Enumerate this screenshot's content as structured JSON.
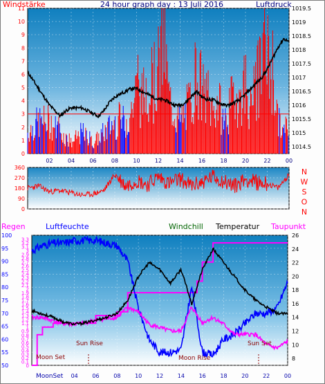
{
  "header": {
    "left_title": "Windstärke",
    "center_title": "24 hour graph day : 13 Juli 2016",
    "right_title": "Luftdruck"
  },
  "colors": {
    "wind": "#ff0000",
    "wind_low": "#0000ff",
    "pressure": "#000000",
    "direction": "#ff0000",
    "rain": "#ff00ff",
    "humidity": "#0000ff",
    "windchill": "#006400",
    "temperature": "#000000",
    "dewpoint": "#ff00ff",
    "sun_marker": "#8b0000"
  },
  "chart_data": [
    {
      "type": "line",
      "name": "wind-pressure",
      "left_axis_ticks": [
        "0",
        "1",
        "2",
        "3",
        "4",
        "5",
        "6",
        "7",
        "8",
        "9",
        "10",
        "11"
      ],
      "right_axis_ticks": [
        "1014.5",
        "1015",
        "1015.5",
        "1016",
        "1016.5",
        "1017",
        "1017.5",
        "1018",
        "1018.5",
        "1019",
        "1019.5"
      ],
      "x_ticks": [
        "02",
        "04",
        "06",
        "08",
        "10",
        "12",
        "14",
        "16",
        "18",
        "20",
        "22",
        "00"
      ],
      "wind_ylim": [
        0,
        11
      ],
      "pressure_ylim": [
        1014.25,
        1019.5
      ],
      "pressure_series": {
        "x": [
          0,
          0.5,
          1,
          1.5,
          2,
          2.5,
          3,
          3.5,
          4,
          4.5,
          5,
          5.5,
          6,
          6.5,
          7,
          7.5,
          8,
          8.5,
          9,
          9.5,
          10,
          10.5,
          11,
          11.5,
          12,
          12.5,
          13,
          13.5,
          14,
          14.5,
          15,
          15.5,
          16,
          16.5,
          17,
          17.5,
          18,
          18.5,
          19,
          19.5,
          20,
          20.5,
          21,
          21.5,
          22,
          22.5,
          23,
          23.5,
          24
        ],
        "values": [
          1017.2,
          1016.9,
          1016.6,
          1016.3,
          1016.0,
          1015.8,
          1015.6,
          1015.8,
          1015.9,
          1015.9,
          1015.9,
          1015.8,
          1015.7,
          1015.6,
          1015.8,
          1016.1,
          1016.3,
          1016.4,
          1016.5,
          1016.6,
          1016.6,
          1016.5,
          1016.4,
          1016.3,
          1016.2,
          1016.2,
          1016.1,
          1016.0,
          1016.0,
          1016.1,
          1016.3,
          1016.5,
          1016.3,
          1016.2,
          1016.2,
          1016.1,
          1016.0,
          1016.0,
          1016.1,
          1016.2,
          1016.4,
          1016.6,
          1016.8,
          1017.0,
          1017.3,
          1017.7,
          1018.1,
          1018.4,
          1018.3
        ]
      },
      "wind_series": {
        "x": [
          0,
          1,
          2,
          3,
          4,
          5,
          6,
          7,
          8,
          9,
          9.5,
          10,
          10.5,
          11,
          11.5,
          12,
          12.5,
          13,
          13.5,
          14,
          14.5,
          15,
          15.5,
          16,
          16.5,
          17,
          17.5,
          18,
          18.5,
          19,
          19.5,
          20,
          20.5,
          21,
          21.5,
          22,
          22.5,
          23,
          23.5,
          24
        ],
        "values": [
          2,
          3,
          3,
          2,
          1,
          2,
          1,
          2,
          3,
          3,
          4,
          6,
          5,
          7,
          6,
          8,
          11,
          5,
          4,
          3,
          4,
          5,
          8,
          6,
          5,
          4,
          5,
          3,
          4,
          6,
          5,
          7,
          4,
          6,
          8,
          9,
          8,
          3,
          2,
          3
        ]
      }
    },
    {
      "type": "line",
      "name": "wind-direction",
      "left_axis_ticks": [
        "0",
        "90",
        "180",
        "270",
        "360"
      ],
      "compass_labels": [
        "N",
        "W",
        "S",
        "O",
        "N"
      ],
      "ylim": [
        0,
        360
      ],
      "series": {
        "x": [
          0,
          1,
          2,
          3,
          4,
          5,
          6,
          7,
          8,
          9,
          10,
          11,
          12,
          13,
          14,
          15,
          16,
          17,
          18,
          19,
          20,
          21,
          22,
          23,
          24
        ],
        "values": [
          180,
          200,
          150,
          160,
          140,
          120,
          130,
          160,
          300,
          200,
          250,
          210,
          280,
          220,
          260,
          200,
          230,
          280,
          240,
          200,
          260,
          230,
          220,
          180,
          300
        ]
      }
    },
    {
      "type": "line",
      "name": "rain-humidity-temperature",
      "legend": [
        "Regen",
        "Luftfeuchte",
        "Windchill",
        "Temperatur",
        "Taupunkt"
      ],
      "rain_ticks": [
        "0",
        "0.1",
        "0.2",
        "0.3",
        "0.4",
        "0.5",
        "0.6",
        "0.7",
        "0.8",
        "0.9",
        "1",
        "1.1",
        "1.2",
        "1.3",
        "1.4",
        "1.5",
        "1.6",
        "1.7",
        "1.8",
        "1.9",
        "2",
        "2.1",
        "2.2",
        "2.3",
        "2.4",
        "2.5",
        "2.6",
        "2.7",
        "2.8",
        "2.9",
        "3",
        "3.1",
        "3.2",
        "3.3"
      ],
      "humidity_ticks": [
        "50",
        "55",
        "60",
        "65",
        "70",
        "75",
        "80",
        "85",
        "90",
        "95",
        "100"
      ],
      "temperature_ticks": [
        "8",
        "10",
        "12",
        "14",
        "16",
        "18",
        "20",
        "22",
        "24",
        "26"
      ],
      "x_ticks": [
        "04",
        "06",
        "08",
        "10",
        "12",
        "14",
        "16",
        "18",
        "20",
        "22",
        "00"
      ],
      "rain_ylim": [
        0,
        3.4
      ],
      "humidity_ylim": [
        50,
        100
      ],
      "temperature_ylim": [
        7,
        26
      ],
      "annotations": [
        "Moon Set",
        "Sun Rise",
        "Moon Rise",
        "Sun Set"
      ],
      "moon_set_label": "MoonSet",
      "temperature": {
        "x": [
          0,
          1,
          2,
          3,
          4,
          5,
          6,
          7,
          8,
          9,
          10,
          11,
          12,
          13,
          14,
          15,
          16,
          17,
          18,
          19,
          20,
          21,
          22,
          23,
          24
        ],
        "values": [
          15,
          14.5,
          14,
          13.3,
          13,
          13.2,
          13.6,
          14,
          14.6,
          16.5,
          20,
          22,
          21,
          19,
          21,
          16,
          21,
          24,
          22,
          20,
          18,
          16.5,
          15.5,
          14.6,
          14.5
        ]
      },
      "dewpoint": {
        "x": [
          0,
          1,
          2,
          3,
          4,
          5,
          6,
          7,
          8,
          9,
          10,
          11,
          12,
          13,
          14,
          15,
          16,
          17,
          18,
          19,
          20,
          21,
          22,
          23,
          24
        ],
        "values": [
          14,
          14,
          13.5,
          13.1,
          13,
          13.2,
          13.6,
          13.8,
          14,
          15.5,
          14.8,
          13,
          12.5,
          12,
          12,
          15.5,
          13.2,
          14,
          13,
          11.5,
          11.5,
          11.5,
          10,
          9.5,
          10.5
        ]
      },
      "humidity": {
        "x": [
          0,
          1,
          2,
          3,
          4,
          5,
          6,
          7,
          8,
          9,
          10,
          11,
          12,
          13,
          14,
          15,
          16,
          17,
          18,
          19,
          20,
          21,
          22,
          23,
          24
        ],
        "values": [
          94,
          96,
          97,
          97,
          98,
          98,
          98,
          97,
          96,
          90,
          72,
          60,
          55,
          55,
          56,
          80,
          55,
          54,
          60,
          62,
          66,
          70,
          70,
          72,
          82
        ]
      },
      "rain_total": {
        "x": [
          0,
          0.5,
          1,
          2,
          5,
          6,
          8,
          9,
          12,
          15,
          15.5,
          16,
          17,
          24
        ],
        "values": [
          0,
          0.8,
          1.0,
          1.1,
          1.1,
          1.3,
          1.4,
          1.9,
          1.9,
          1.9,
          2.2,
          2.7,
          3.2,
          3.2
        ]
      }
    }
  ]
}
